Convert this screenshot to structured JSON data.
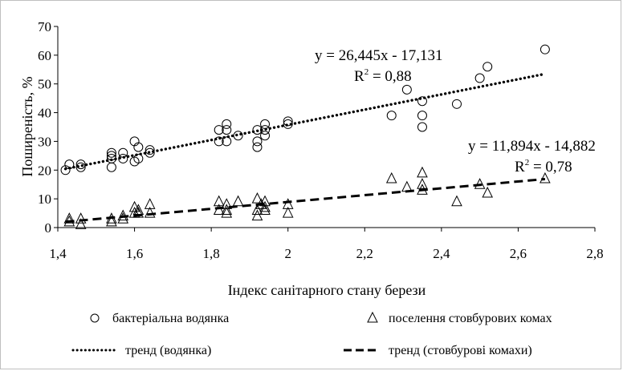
{
  "chart_data": {
    "type": "scatter",
    "title": "",
    "xlabel": "Індекс санітарного стану берези",
    "ylabel": "Поширеність, %",
    "xlim": [
      1.4,
      2.8
    ],
    "ylim": [
      0,
      70
    ],
    "x_ticks": [
      "1,4",
      "1,6",
      "1,8",
      "2",
      "2,2",
      "2,4",
      "2,6",
      "2,8"
    ],
    "y_ticks": [
      "0",
      "10",
      "20",
      "30",
      "40",
      "50",
      "60",
      "70"
    ],
    "grid": false,
    "legend_position": "bottom",
    "series": [
      {
        "name": "бактеріальна водянка",
        "marker": "circle",
        "points": [
          [
            1.42,
            20
          ],
          [
            1.43,
            22
          ],
          [
            1.46,
            21
          ],
          [
            1.46,
            22
          ],
          [
            1.54,
            21
          ],
          [
            1.54,
            24
          ],
          [
            1.54,
            25
          ],
          [
            1.54,
            26
          ],
          [
            1.57,
            24
          ],
          [
            1.57,
            26
          ],
          [
            1.6,
            23
          ],
          [
            1.6,
            30
          ],
          [
            1.61,
            24
          ],
          [
            1.61,
            28
          ],
          [
            1.64,
            26
          ],
          [
            1.64,
            27
          ],
          [
            1.82,
            30
          ],
          [
            1.82,
            34
          ],
          [
            1.84,
            30
          ],
          [
            1.84,
            34
          ],
          [
            1.84,
            36
          ],
          [
            1.87,
            32
          ],
          [
            1.92,
            28
          ],
          [
            1.92,
            30
          ],
          [
            1.92,
            34
          ],
          [
            1.94,
            32
          ],
          [
            1.94,
            34
          ],
          [
            1.94,
            36
          ],
          [
            2.0,
            36
          ],
          [
            2.0,
            37
          ],
          [
            2.27,
            39
          ],
          [
            2.31,
            48
          ],
          [
            2.35,
            35
          ],
          [
            2.35,
            39
          ],
          [
            2.35,
            44
          ],
          [
            2.44,
            43
          ],
          [
            2.5,
            52
          ],
          [
            2.52,
            56
          ],
          [
            2.67,
            62
          ]
        ]
      },
      {
        "name": "поселення стовбурових комах",
        "marker": "triangle",
        "points": [
          [
            1.43,
            2
          ],
          [
            1.43,
            3
          ],
          [
            1.46,
            1
          ],
          [
            1.46,
            3
          ],
          [
            1.54,
            2
          ],
          [
            1.54,
            3
          ],
          [
            1.57,
            3
          ],
          [
            1.57,
            4
          ],
          [
            1.6,
            5
          ],
          [
            1.6,
            7
          ],
          [
            1.61,
            5
          ],
          [
            1.61,
            6
          ],
          [
            1.64,
            5
          ],
          [
            1.64,
            8
          ],
          [
            1.82,
            6
          ],
          [
            1.82,
            9
          ],
          [
            1.84,
            5
          ],
          [
            1.84,
            6
          ],
          [
            1.84,
            8
          ],
          [
            1.87,
            9
          ],
          [
            1.92,
            4
          ],
          [
            1.92,
            6
          ],
          [
            1.92,
            10
          ],
          [
            1.93,
            8
          ],
          [
            1.94,
            6
          ],
          [
            1.94,
            7
          ],
          [
            1.94,
            9
          ],
          [
            2.0,
            5
          ],
          [
            2.0,
            8
          ],
          [
            2.27,
            17
          ],
          [
            2.31,
            14
          ],
          [
            2.35,
            13
          ],
          [
            2.35,
            15
          ],
          [
            2.35,
            19
          ],
          [
            2.44,
            9
          ],
          [
            2.5,
            15
          ],
          [
            2.52,
            12
          ],
          [
            2.67,
            17
          ]
        ]
      }
    ],
    "trendlines": [
      {
        "name": "тренд (водянка)",
        "style": "dotted",
        "slope": 26.445,
        "intercept": -17.131,
        "x_range": [
          1.42,
          2.67
        ],
        "equation": "y = 26,445x - 17,131",
        "r2_label": "R",
        "r2_sup": "2",
        "r2_value": " = 0,88"
      },
      {
        "name": "тренд (стовбурові комахи)",
        "style": "dashed",
        "slope": 11.894,
        "intercept": -14.882,
        "x_range": [
          1.42,
          2.67
        ],
        "equation": "y = 11,894x - 14,882",
        "r2_label": "R",
        "r2_sup": "2",
        "r2_value": " = 0,78"
      }
    ]
  }
}
